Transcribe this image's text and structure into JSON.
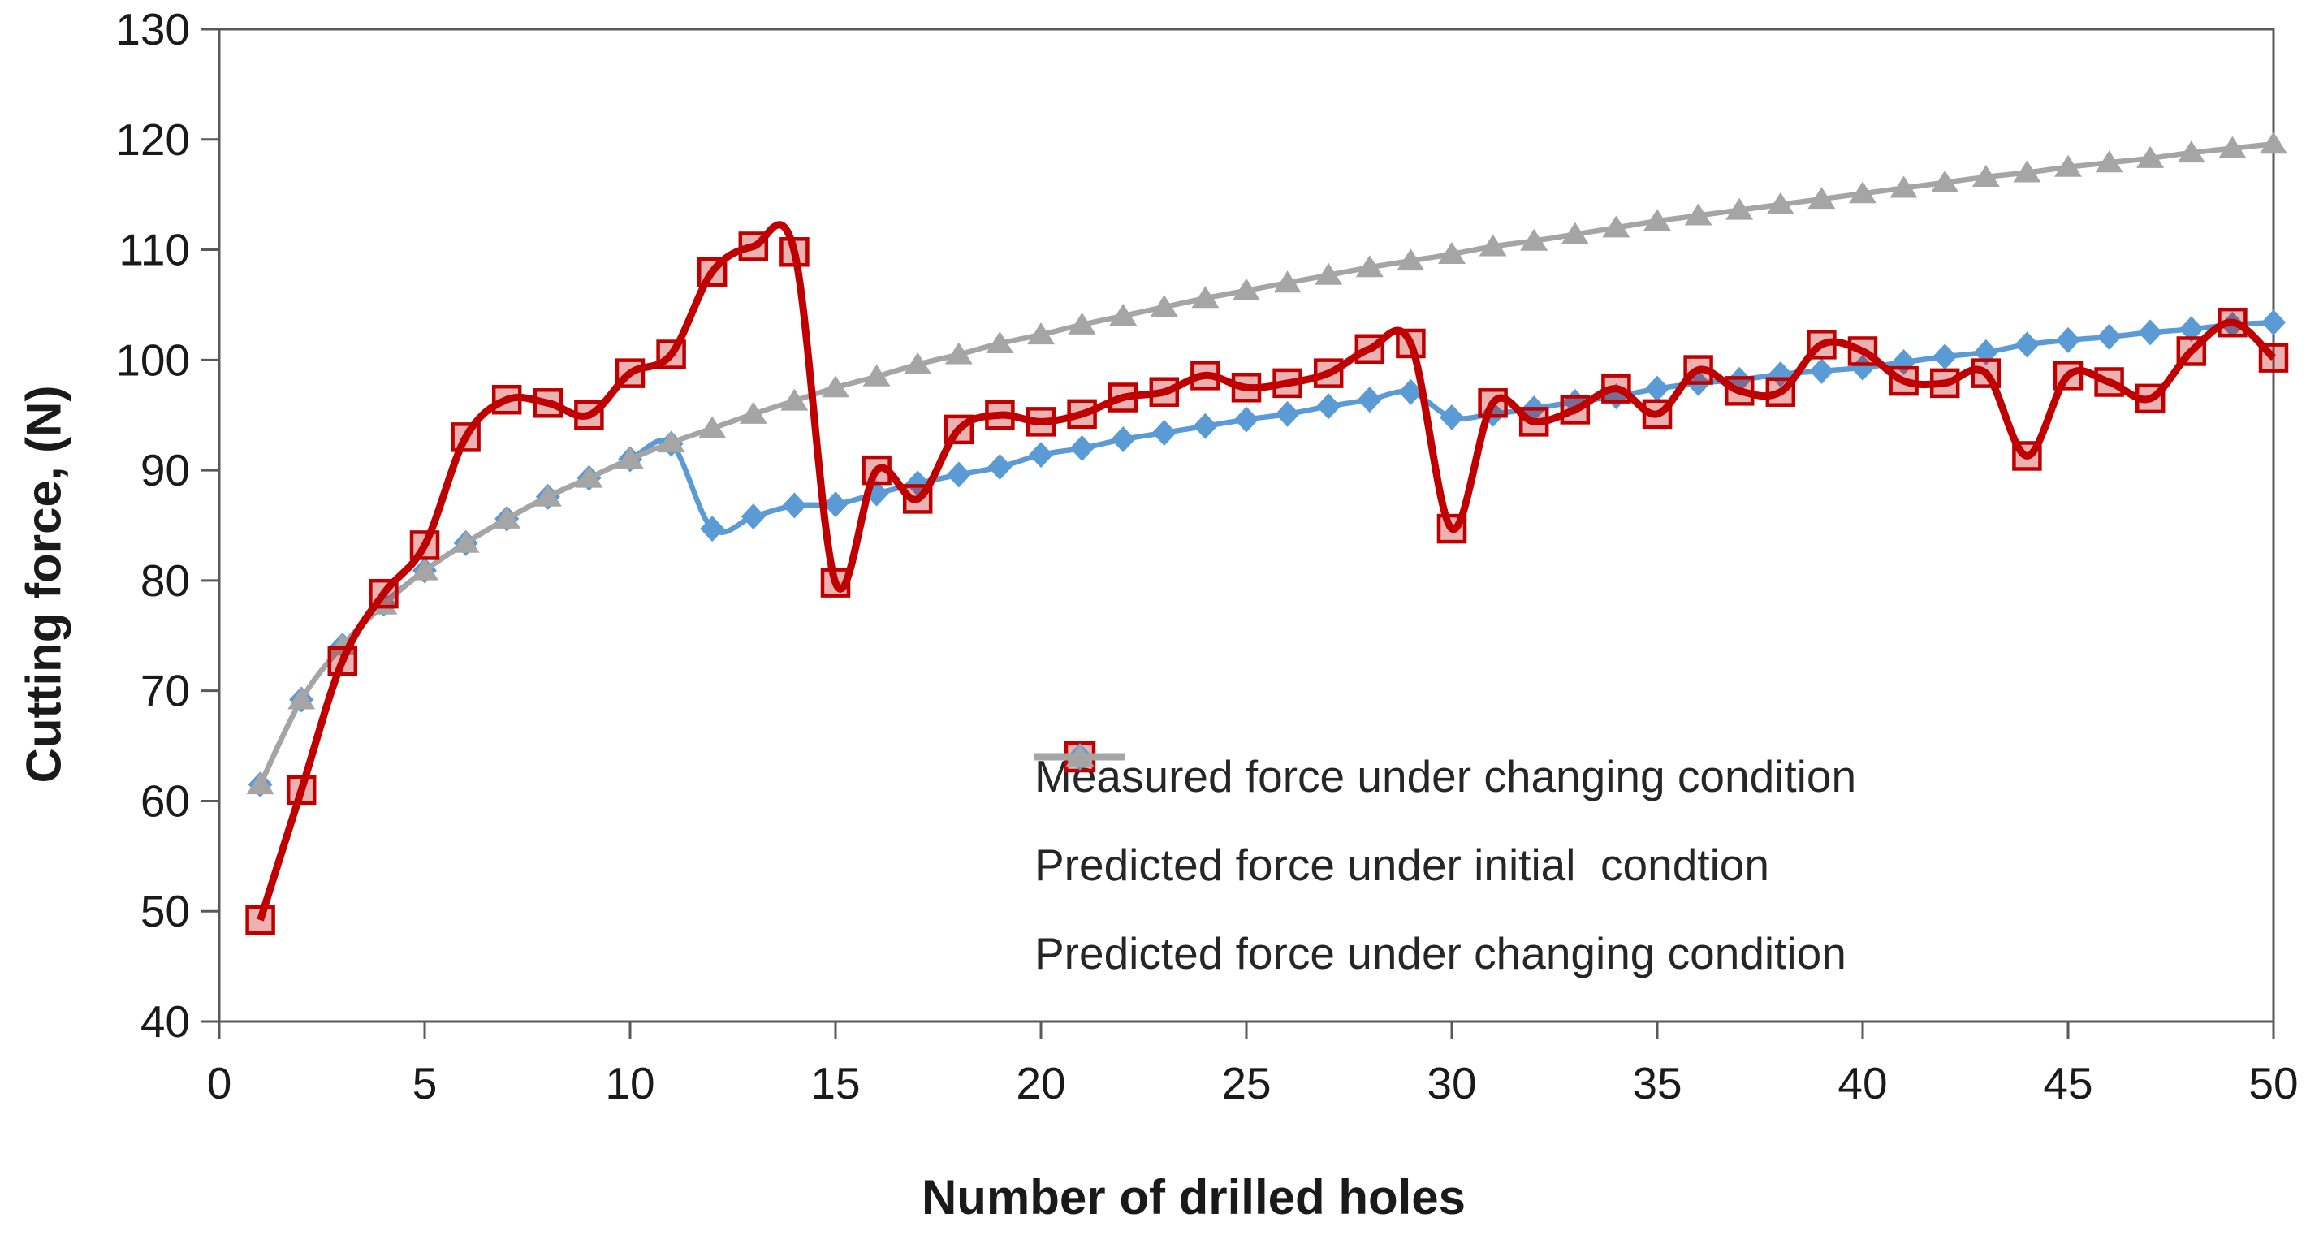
{
  "chart_data": {
    "type": "line",
    "title": "",
    "xlabel": "Number of drilled holes",
    "ylabel": "Cutting force, (N)",
    "xlim": [
      0,
      50
    ],
    "ylim": [
      40,
      130
    ],
    "x_ticks": [
      0,
      5,
      10,
      15,
      20,
      25,
      30,
      35,
      40,
      45,
      50
    ],
    "y_ticks": [
      40,
      50,
      60,
      70,
      80,
      90,
      100,
      110,
      120,
      130
    ],
    "grid": false,
    "legend_position": "inside-bottom-right",
    "x": [
      1,
      2,
      3,
      4,
      5,
      6,
      7,
      8,
      9,
      10,
      11,
      12,
      13,
      14,
      15,
      16,
      17,
      18,
      19,
      20,
      21,
      22,
      23,
      24,
      25,
      26,
      27,
      28,
      29,
      30,
      31,
      32,
      33,
      34,
      35,
      36,
      37,
      38,
      39,
      40,
      41,
      42,
      43,
      44,
      45,
      46,
      47,
      48,
      49,
      50
    ],
    "series": [
      {
        "name": "Measured force under changing condition",
        "color": "#C00000",
        "marker": "square",
        "smooth": true,
        "values": [
          49.2,
          61.0,
          72.7,
          78.8,
          83.2,
          93.0,
          96.4,
          96.1,
          95.0,
          98.8,
          100.5,
          108.0,
          110.3,
          109.8,
          79.8,
          90.0,
          87.4,
          93.7,
          95.0,
          94.4,
          95.1,
          96.6,
          97.1,
          98.6,
          97.5,
          97.9,
          98.8,
          101.0,
          101.5,
          84.7,
          96.1,
          94.4,
          95.5,
          97.4,
          95.1,
          99.1,
          97.2,
          97.1,
          101.4,
          100.8,
          98.1,
          97.9,
          98.8,
          91.3,
          98.6,
          98.0,
          96.5,
          100.8,
          103.4,
          100.2
        ]
      },
      {
        "name": "Predicted force under initial  condtion",
        "color": "#5B9BD5",
        "marker": "diamond",
        "smooth": true,
        "values": [
          61.5,
          69.2,
          74.1,
          77.9,
          80.9,
          83.4,
          85.6,
          87.6,
          89.3,
          91.0,
          92.4,
          84.7,
          85.8,
          86.8,
          86.9,
          87.9,
          88.8,
          89.6,
          90.3,
          91.4,
          92.0,
          92.8,
          93.4,
          94.0,
          94.6,
          95.1,
          95.8,
          96.4,
          97.1,
          94.8,
          95.1,
          95.6,
          96.2,
          96.7,
          97.4,
          97.9,
          98.2,
          98.7,
          99.0,
          99.3,
          99.8,
          100.3,
          100.7,
          101.4,
          101.8,
          102.1,
          102.5,
          102.8,
          103.2,
          103.4
        ]
      },
      {
        "name": "Predicted force under changing condition",
        "color": "#A5A5A5",
        "marker": "triangle",
        "smooth": true,
        "values": [
          61.5,
          69.2,
          74.1,
          77.8,
          80.9,
          83.4,
          85.6,
          87.6,
          89.3,
          91.0,
          92.5,
          93.8,
          95.1,
          96.3,
          97.5,
          98.5,
          99.6,
          100.5,
          101.5,
          102.3,
          103.2,
          104.0,
          104.8,
          105.6,
          106.3,
          107.0,
          107.7,
          108.4,
          109.0,
          109.6,
          110.3,
          110.8,
          111.4,
          112.0,
          112.6,
          113.1,
          113.6,
          114.1,
          114.6,
          115.1,
          115.6,
          116.1,
          116.6,
          117.0,
          117.5,
          117.9,
          118.3,
          118.8,
          119.2,
          119.6
        ]
      }
    ]
  }
}
